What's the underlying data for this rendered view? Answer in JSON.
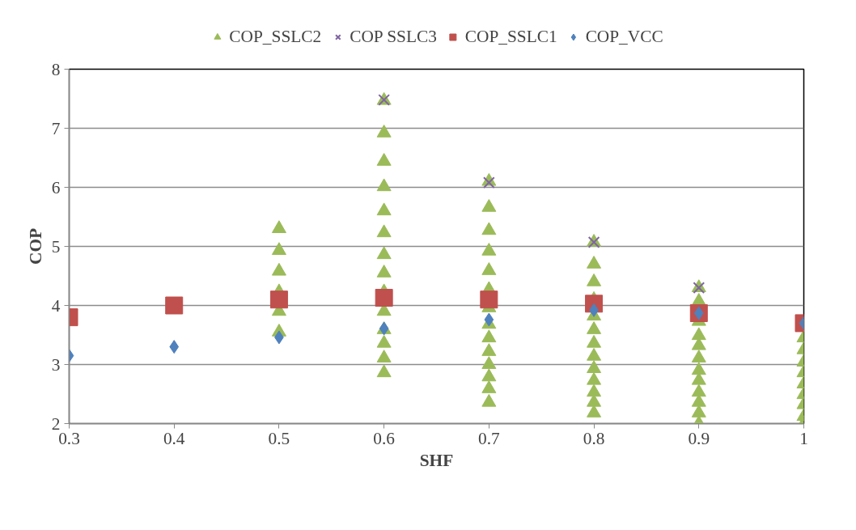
{
  "chart_data": {
    "type": "scatter",
    "xlabel": "SHF",
    "ylabel": "COP",
    "xlim": [
      0.3,
      1
    ],
    "ylim": [
      2,
      8
    ],
    "xticks": [
      0.3,
      0.4,
      0.5,
      0.6,
      0.7,
      0.8,
      0.9,
      1
    ],
    "yticks": [
      2,
      3,
      4,
      5,
      6,
      7,
      8
    ],
    "grid": "y",
    "legend": "top",
    "series": [
      {
        "name": "COP_SSLC2",
        "color": "#9bbb59",
        "marker": "triangle",
        "x": [
          0.5,
          0.5,
          0.5,
          0.5,
          0.5,
          0.5,
          0.6,
          0.6,
          0.6,
          0.6,
          0.6,
          0.6,
          0.6,
          0.6,
          0.6,
          0.6,
          0.6,
          0.6,
          0.6,
          0.6,
          0.7,
          0.7,
          0.7,
          0.7,
          0.7,
          0.7,
          0.7,
          0.7,
          0.7,
          0.7,
          0.7,
          0.7,
          0.7,
          0.7,
          0.8,
          0.8,
          0.8,
          0.8,
          0.8,
          0.8,
          0.8,
          0.8,
          0.8,
          0.8,
          0.8,
          0.8,
          0.8,
          0.9,
          0.9,
          0.9,
          0.9,
          0.9,
          0.9,
          0.9,
          0.9,
          0.9,
          0.9,
          0.9,
          0.9,
          1,
          1,
          1,
          1,
          1,
          1,
          1,
          1,
          1,
          1
        ],
        "values": [
          5.3,
          4.93,
          4.58,
          4.23,
          3.9,
          3.55,
          7.47,
          6.92,
          6.44,
          6.01,
          5.6,
          5.23,
          4.86,
          4.55,
          4.23,
          3.9,
          3.59,
          3.36,
          3.11,
          2.86,
          6.1,
          5.66,
          5.27,
          4.92,
          4.59,
          4.27,
          3.96,
          3.68,
          3.45,
          3.22,
          3.0,
          2.79,
          2.59,
          2.36,
          5.07,
          4.7,
          4.4,
          4.1,
          3.82,
          3.59,
          3.36,
          3.14,
          2.93,
          2.73,
          2.53,
          2.36,
          2.18,
          4.3,
          4.07,
          3.73,
          3.49,
          3.32,
          3.11,
          2.9,
          2.73,
          2.53,
          2.36,
          2.18,
          2.0,
          3.63,
          3.45,
          3.25,
          3.04,
          2.86,
          2.67,
          2.49,
          2.32,
          2.12,
          2.0
        ]
      },
      {
        "name": "COP SSLC3",
        "color": "#8064a2",
        "marker": "cross",
        "x": [
          0.6,
          0.7,
          0.8,
          0.9
        ],
        "values": [
          7.48,
          6.08,
          5.07,
          4.3
        ]
      },
      {
        "name": "COP_SSLC1",
        "color": "#c0504d",
        "marker": "square",
        "x": [
          0.3,
          0.4,
          0.5,
          0.6,
          0.7,
          0.8,
          0.9,
          1
        ],
        "values": [
          3.8,
          4.0,
          4.1,
          4.13,
          4.1,
          4.03,
          3.87,
          3.7
        ]
      },
      {
        "name": "COP_VCC",
        "color": "#4f81bd",
        "marker": "diamond",
        "x": [
          0.3,
          0.4,
          0.5,
          0.6,
          0.7,
          0.8,
          0.9,
          1
        ],
        "values": [
          3.15,
          3.3,
          3.46,
          3.61,
          3.76,
          3.92,
          3.87,
          3.7
        ]
      }
    ]
  }
}
